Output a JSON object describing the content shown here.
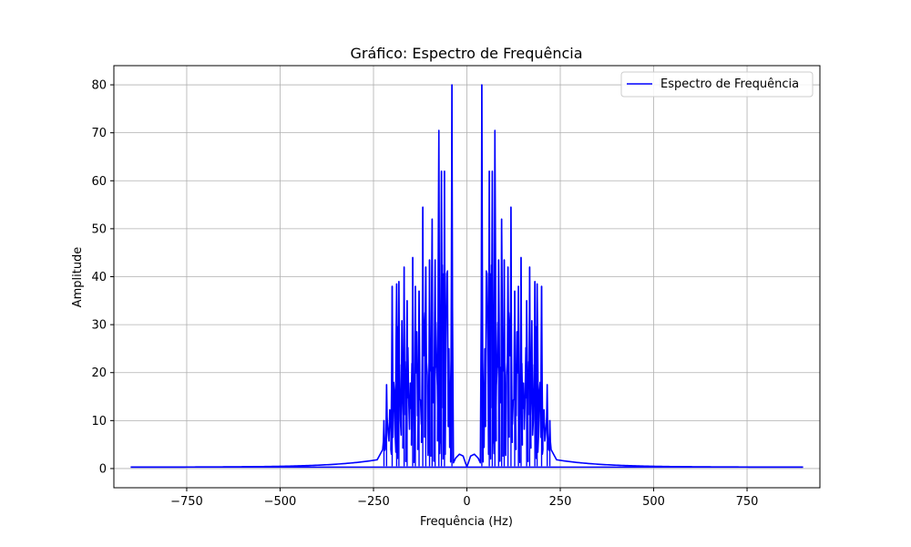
{
  "chart_data": {
    "type": "line",
    "title": "Gráfico: Espectro de Frequência",
    "xlabel": "Frequência (Hz)",
    "ylabel": "Amplitude",
    "xlim": [
      -945,
      945
    ],
    "ylim": [
      -4,
      84
    ],
    "xticks": [
      -750,
      -500,
      -250,
      0,
      250,
      500,
      750
    ],
    "xtick_labels": [
      "−750",
      "−500",
      "−250",
      "0",
      "250",
      "500",
      "750"
    ],
    "yticks": [
      0,
      10,
      20,
      30,
      40,
      50,
      60,
      70,
      80
    ],
    "ytick_labels": [
      "0",
      "10",
      "20",
      "30",
      "40",
      "50",
      "60",
      "70",
      "80"
    ],
    "grid": true,
    "legend_position": "top-right",
    "series": [
      {
        "name": "Espectro de Frequência",
        "color": "#0000ff",
        "peaks": [
          {
            "x": 40,
            "y": 80
          },
          {
            "x": 60,
            "y": 62
          },
          {
            "x": 68,
            "y": 62
          },
          {
            "x": 75,
            "y": 70.5
          },
          {
            "x": 85,
            "y": 43.5
          },
          {
            "x": 93,
            "y": 52
          },
          {
            "x": 100,
            "y": 43.5
          },
          {
            "x": 110,
            "y": 42
          },
          {
            "x": 118,
            "y": 54.5
          },
          {
            "x": 128,
            "y": 37
          },
          {
            "x": 138,
            "y": 38
          },
          {
            "x": 145,
            "y": 44
          },
          {
            "x": 160,
            "y": 35
          },
          {
            "x": 168,
            "y": 42
          },
          {
            "x": 182,
            "y": 39
          },
          {
            "x": 188,
            "y": 38.5
          },
          {
            "x": 200,
            "y": 38
          },
          {
            "x": 215,
            "y": 17.5
          },
          {
            "x": 222,
            "y": 10
          }
        ],
        "baseline": 0.3
      }
    ]
  }
}
